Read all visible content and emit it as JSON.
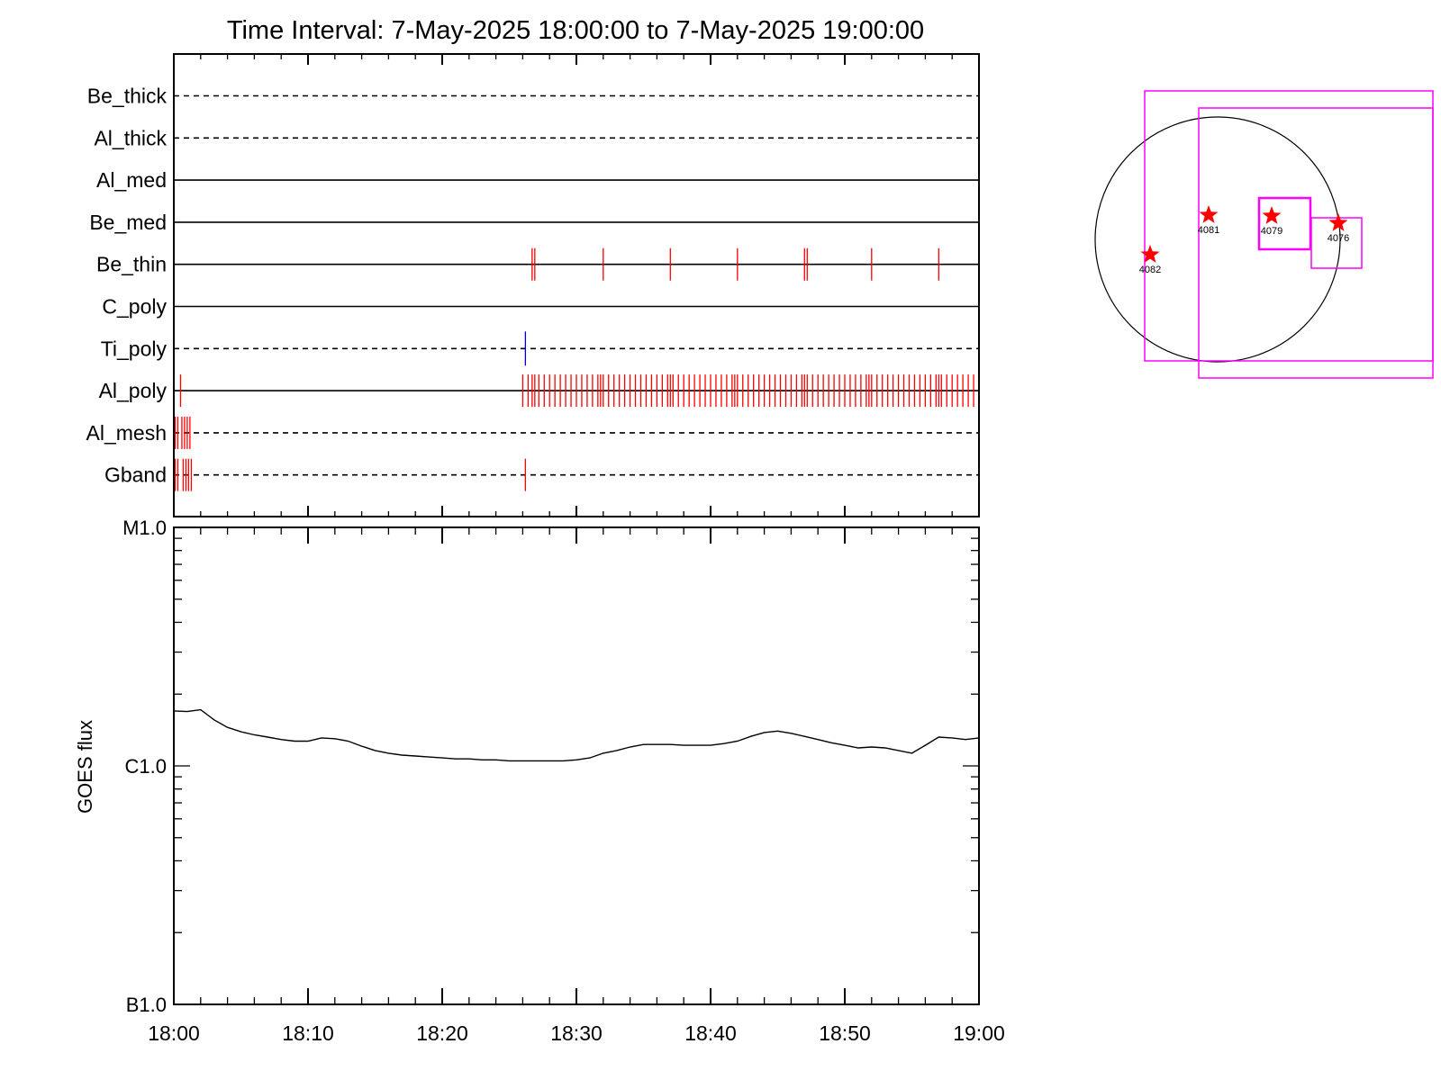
{
  "title": "Time Interval:  7-May-2025 18:00:00 to  7-May-2025 19:00:00",
  "chart_data": [
    {
      "type": "event-raster",
      "x_range": [
        "18:00",
        "19:00"
      ],
      "rows": [
        {
          "name": "Be_thick",
          "style": "dashed",
          "events": []
        },
        {
          "name": "Al_thick",
          "style": "dashed",
          "events": []
        },
        {
          "name": "Al_med",
          "style": "solid",
          "events": []
        },
        {
          "name": "Be_med",
          "style": "solid",
          "events": []
        },
        {
          "name": "Be_thin",
          "style": "solid",
          "color": "#ff0000",
          "events": [
            26.7,
            26.9,
            32.0,
            37.0,
            42.0,
            47.0,
            47.2,
            52.0,
            57.0
          ]
        },
        {
          "name": "C_poly",
          "style": "solid",
          "events": []
        },
        {
          "name": "Ti_poly",
          "style": "dashed",
          "color": "#0000cc",
          "events": [
            26.2
          ]
        },
        {
          "name": "Al_poly",
          "style": "solid",
          "color": "#ff0000",
          "events": [
            0.5,
            26.0,
            26.4,
            26.7,
            26.9,
            27.2,
            27.6,
            28.0,
            28.4,
            28.8,
            29.2,
            29.6,
            30.0,
            30.4,
            30.8,
            31.2,
            31.6,
            31.8,
            32.0,
            32.4,
            32.8,
            33.2,
            33.6,
            34.0,
            34.4,
            34.8,
            35.2,
            35.6,
            36.0,
            36.4,
            36.8,
            37.0,
            37.2,
            37.6,
            38.0,
            38.4,
            38.8,
            39.2,
            39.6,
            40.0,
            40.4,
            40.8,
            41.2,
            41.6,
            41.8,
            42.0,
            42.4,
            42.8,
            43.2,
            43.6,
            44.0,
            44.4,
            44.8,
            45.2,
            45.6,
            46.0,
            46.4,
            46.8,
            47.0,
            47.2,
            47.6,
            48.0,
            48.4,
            48.8,
            49.2,
            49.6,
            50.0,
            50.4,
            50.8,
            51.2,
            51.6,
            51.8,
            52.0,
            52.4,
            52.8,
            53.2,
            53.6,
            54.0,
            54.4,
            54.8,
            55.2,
            55.6,
            56.0,
            56.4,
            56.8,
            57.0,
            57.2,
            57.6,
            58.0,
            58.4,
            58.8,
            59.2,
            59.6
          ]
        },
        {
          "name": "Al_mesh",
          "style": "dashed",
          "color": "#ff0000",
          "events": [
            0.1,
            0.3,
            0.6,
            0.8,
            1.0,
            1.2
          ]
        },
        {
          "name": "Gband",
          "style": "dashed",
          "color": "#ff0000",
          "events": [
            0.1,
            0.3,
            0.7,
            0.9,
            1.1,
            1.3,
            26.2
          ]
        }
      ]
    },
    {
      "type": "line",
      "ylabel": "GOES flux",
      "y_scale": "log",
      "y_ticks": [
        "B1.0",
        "C1.0",
        "M1.0"
      ],
      "ylim": [
        1e-07,
        1e-05
      ],
      "x_ticks": [
        "18:00",
        "18:10",
        "18:20",
        "18:30",
        "18:40",
        "18:50",
        "19:00"
      ],
      "x_range_minutes": [
        0,
        60
      ],
      "series": [
        {
          "color": "#000000",
          "x": [
            0,
            1,
            2,
            3,
            4,
            5,
            6,
            7,
            8,
            9,
            10,
            11,
            12,
            13,
            14,
            15,
            16,
            17,
            18,
            19,
            20,
            21,
            22,
            23,
            24,
            25,
            26,
            27,
            28,
            29,
            30,
            31,
            32,
            33,
            34,
            35,
            36,
            37,
            38,
            39,
            40,
            41,
            42,
            43,
            44,
            45,
            46,
            47,
            48,
            49,
            50,
            51,
            52,
            53,
            54,
            55,
            56,
            57,
            58,
            59,
            60
          ],
          "y": [
            1.7e-06,
            1.69e-06,
            1.72e-06,
            1.56e-06,
            1.45e-06,
            1.39e-06,
            1.35e-06,
            1.32e-06,
            1.29e-06,
            1.27e-06,
            1.27e-06,
            1.31e-06,
            1.3e-06,
            1.27e-06,
            1.21e-06,
            1.16e-06,
            1.13e-06,
            1.11e-06,
            1.1e-06,
            1.09e-06,
            1.08e-06,
            1.07e-06,
            1.07e-06,
            1.06e-06,
            1.06e-06,
            1.05e-06,
            1.05e-06,
            1.05e-06,
            1.05e-06,
            1.05e-06,
            1.06e-06,
            1.08e-06,
            1.13e-06,
            1.16e-06,
            1.2e-06,
            1.23e-06,
            1.23e-06,
            1.23e-06,
            1.22e-06,
            1.22e-06,
            1.22e-06,
            1.24e-06,
            1.27e-06,
            1.33e-06,
            1.38e-06,
            1.4e-06,
            1.37e-06,
            1.33e-06,
            1.29e-06,
            1.25e-06,
            1.22e-06,
            1.19e-06,
            1.2e-06,
            1.19e-06,
            1.16e-06,
            1.13e-06,
            1.22e-06,
            1.32e-06,
            1.31e-06,
            1.29e-06,
            1.31e-06
          ]
        }
      ]
    },
    {
      "type": "scatter",
      "description_of_marks": "solar disk map with active regions",
      "points": [
        {
          "label": "4082",
          "color": "#ff0000",
          "symbol": "star"
        },
        {
          "label": "4081",
          "color": "#ff0000",
          "symbol": "star"
        },
        {
          "label": "4079",
          "color": "#ff0000",
          "symbol": "star"
        },
        {
          "label": "4076",
          "color": "#ff0000",
          "symbol": "star"
        }
      ],
      "box_color": "#ff00ff",
      "disk_color": "#000000"
    }
  ]
}
